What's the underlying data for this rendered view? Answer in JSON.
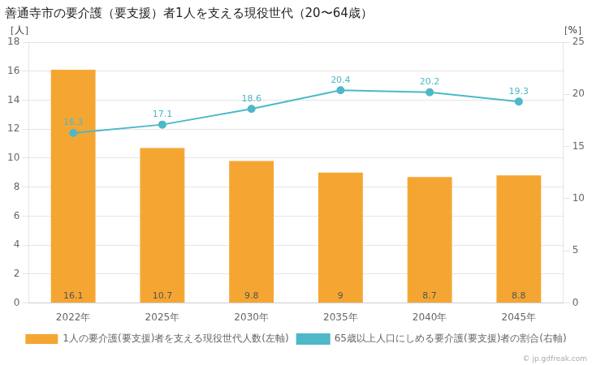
{
  "chart_data": {
    "type": "bar",
    "title": "善通寺市の要介護（要支援）者1人を支える現役世代（20〜64歳）",
    "ylabel": "［人］",
    "y2label": "［%］",
    "categories": [
      "2022年",
      "2025年",
      "2030年",
      "2035年",
      "2040年",
      "2045年"
    ],
    "series": [
      {
        "name": "1人の要介護(要支援)者を支える現役世代人数(左軸)",
        "type": "bar",
        "color": "#f5a632",
        "values": [
          16.1,
          10.7,
          9.8,
          9,
          8.7,
          8.8
        ]
      },
      {
        "name": "65歳以上人口にしめる要介護(要支援)者の割合(右軸)",
        "type": "line",
        "axis": "y2",
        "color": "#4db8c8",
        "marker": "circle",
        "values": [
          16.3,
          17.1,
          18.6,
          20.4,
          20.2,
          19.3
        ]
      }
    ],
    "ylim": [
      0,
      18
    ],
    "yticks": [
      0,
      2,
      4,
      6,
      8,
      10,
      12,
      14,
      16,
      18
    ],
    "y2lim": [
      0,
      25
    ],
    "y2ticks": [
      0,
      5,
      10,
      15,
      20,
      25
    ],
    "grid": true,
    "legend": "bottom",
    "data_labels": true,
    "annotations": [
      "© jp.gdfreak.com"
    ]
  }
}
